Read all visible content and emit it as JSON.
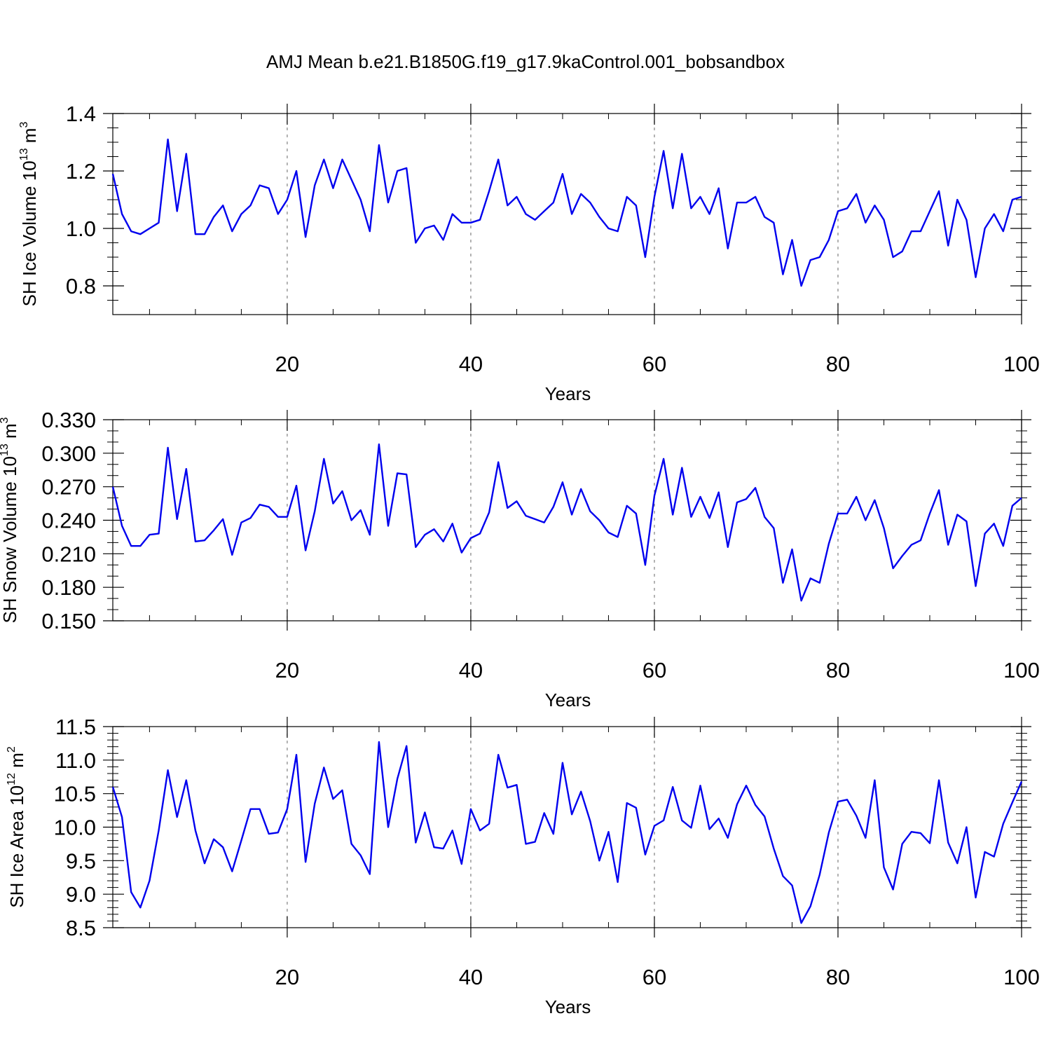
{
  "figure_title": "AMJ Mean b.e21.B1850G.f19_g17.9kaControl.001_bobsandbox",
  "colors": {
    "line": "#0000ee",
    "axis": "#000000",
    "grid": "#808080"
  },
  "chart_data": [
    {
      "type": "line",
      "name": "sh-ice-volume",
      "title": "AMJ Mean b.e21.B1850G.f19_g17.9kaControl.001_bobsandbox",
      "ylabel": "SH Ice Volume 10",
      "ylabel_exp": "13",
      "ylabel_unit": " m",
      "ylabel_unit_exp": "3",
      "xlabel": "Years",
      "xlim": [
        1,
        100
      ],
      "ylim": [
        0.7,
        1.4
      ],
      "xticks": [
        20,
        40,
        60,
        80,
        100
      ],
      "xtick_labels": [
        "20",
        "40",
        "60",
        "80",
        "100"
      ],
      "yticks": [
        0.8,
        1.0,
        1.2,
        1.4
      ],
      "ytick_labels": [
        "0.8",
        "1.0",
        "1.2",
        "1.4"
      ],
      "yminor_step": 0.05,
      "grid": "vertical dashed at major x ticks",
      "x_start": 1,
      "values": [
        1.19,
        1.05,
        0.99,
        0.98,
        1.0,
        1.02,
        1.31,
        1.06,
        1.26,
        0.98,
        0.98,
        1.04,
        1.08,
        0.99,
        1.05,
        1.08,
        1.15,
        1.14,
        1.05,
        1.1,
        1.2,
        0.97,
        1.15,
        1.24,
        1.14,
        1.24,
        1.17,
        1.1,
        0.99,
        1.29,
        1.09,
        1.2,
        1.21,
        0.95,
        1.0,
        1.01,
        0.96,
        1.05,
        1.02,
        1.02,
        1.03,
        1.13,
        1.24,
        1.08,
        1.11,
        1.05,
        1.03,
        1.06,
        1.09,
        1.19,
        1.05,
        1.12,
        1.09,
        1.04,
        1.0,
        0.99,
        1.11,
        1.08,
        0.9,
        1.11,
        1.27,
        1.07,
        1.26,
        1.07,
        1.11,
        1.05,
        1.14,
        0.93,
        1.09,
        1.09,
        1.11,
        1.04,
        1.02,
        0.84,
        0.96,
        0.8,
        0.89,
        0.9,
        0.96,
        1.06,
        1.07,
        1.12,
        1.02,
        1.08,
        1.03,
        0.9,
        0.92,
        0.99,
        0.99,
        1.06,
        1.13,
        0.94,
        1.1,
        1.03,
        0.83,
        1.0,
        1.05,
        0.99,
        1.1,
        1.11
      ]
    },
    {
      "type": "line",
      "name": "sh-snow-volume",
      "ylabel": "SH Snow Volume 10",
      "ylabel_exp": "13",
      "ylabel_unit": " m",
      "ylabel_unit_exp": "3",
      "xlabel": "Years",
      "xlim": [
        1,
        100
      ],
      "ylim": [
        0.15,
        0.33
      ],
      "xticks": [
        20,
        40,
        60,
        80,
        100
      ],
      "xtick_labels": [
        "20",
        "40",
        "60",
        "80",
        "100"
      ],
      "yticks": [
        0.15,
        0.18,
        0.21,
        0.24,
        0.27,
        0.3,
        0.33
      ],
      "ytick_labels": [
        "0.150",
        "0.180",
        "0.210",
        "0.240",
        "0.270",
        "0.300",
        "0.330"
      ],
      "yminor_step": 0.01,
      "grid": "vertical dashed at major x ticks",
      "x_start": 1,
      "values": [
        0.27,
        0.235,
        0.217,
        0.217,
        0.227,
        0.228,
        0.305,
        0.241,
        0.286,
        0.221,
        0.222,
        0.231,
        0.241,
        0.209,
        0.238,
        0.242,
        0.254,
        0.252,
        0.243,
        0.243,
        0.271,
        0.213,
        0.248,
        0.295,
        0.255,
        0.266,
        0.24,
        0.249,
        0.227,
        0.308,
        0.235,
        0.282,
        0.281,
        0.216,
        0.227,
        0.232,
        0.221,
        0.237,
        0.211,
        0.224,
        0.228,
        0.247,
        0.292,
        0.251,
        0.257,
        0.244,
        0.241,
        0.238,
        0.252,
        0.274,
        0.245,
        0.268,
        0.248,
        0.24,
        0.229,
        0.225,
        0.253,
        0.246,
        0.2,
        0.262,
        0.295,
        0.245,
        0.287,
        0.243,
        0.261,
        0.242,
        0.265,
        0.216,
        0.256,
        0.259,
        0.269,
        0.243,
        0.233,
        0.184,
        0.214,
        0.168,
        0.188,
        0.184,
        0.219,
        0.246,
        0.246,
        0.261,
        0.24,
        0.258,
        0.233,
        0.197,
        0.208,
        0.218,
        0.222,
        0.246,
        0.267,
        0.218,
        0.245,
        0.239,
        0.181,
        0.228,
        0.237,
        0.217,
        0.253,
        0.26
      ]
    },
    {
      "type": "line",
      "name": "sh-ice-area",
      "ylabel": "SH Ice Area 10",
      "ylabel_exp": "12",
      "ylabel_unit": " m",
      "ylabel_unit_exp": "2",
      "xlabel": "Years",
      "xlim": [
        1,
        100
      ],
      "ylim": [
        8.5,
        11.5
      ],
      "xticks": [
        20,
        40,
        60,
        80,
        100
      ],
      "xtick_labels": [
        "20",
        "40",
        "60",
        "80",
        "100"
      ],
      "yticks": [
        8.5,
        9.0,
        9.5,
        10.0,
        10.5,
        11.0,
        11.5
      ],
      "ytick_labels": [
        "8.5",
        "9.0",
        "9.5",
        "10.0",
        "10.5",
        "11.0",
        "11.5"
      ],
      "yminor_step": 0.1,
      "grid": "vertical dashed at major x ticks",
      "x_start": 1,
      "values": [
        10.6,
        10.15,
        9.03,
        8.8,
        9.2,
        9.95,
        10.85,
        10.15,
        10.7,
        9.95,
        9.46,
        9.82,
        9.7,
        9.34,
        9.8,
        10.27,
        10.27,
        9.9,
        9.92,
        10.27,
        11.08,
        9.48,
        10.35,
        10.89,
        10.42,
        10.55,
        9.75,
        9.58,
        9.3,
        11.27,
        10.0,
        10.72,
        11.21,
        9.77,
        10.22,
        9.7,
        9.68,
        9.95,
        9.45,
        10.27,
        9.95,
        10.05,
        11.08,
        10.59,
        10.63,
        9.75,
        9.78,
        10.21,
        9.9,
        10.96,
        10.19,
        10.53,
        10.09,
        9.5,
        9.93,
        9.18,
        10.36,
        10.29,
        9.59,
        10.02,
        10.1,
        10.6,
        10.1,
        9.99,
        10.62,
        9.97,
        10.13,
        9.84,
        10.34,
        10.62,
        10.33,
        10.16,
        9.68,
        9.27,
        9.13,
        8.57,
        8.82,
        9.29,
        9.92,
        10.38,
        10.41,
        10.17,
        9.84,
        10.7,
        9.4,
        9.07,
        9.75,
        9.93,
        9.91,
        9.76,
        10.7,
        9.77,
        9.46,
        10.0,
        8.95,
        9.63,
        9.56,
        10.05,
        10.37,
        10.68
      ]
    }
  ]
}
